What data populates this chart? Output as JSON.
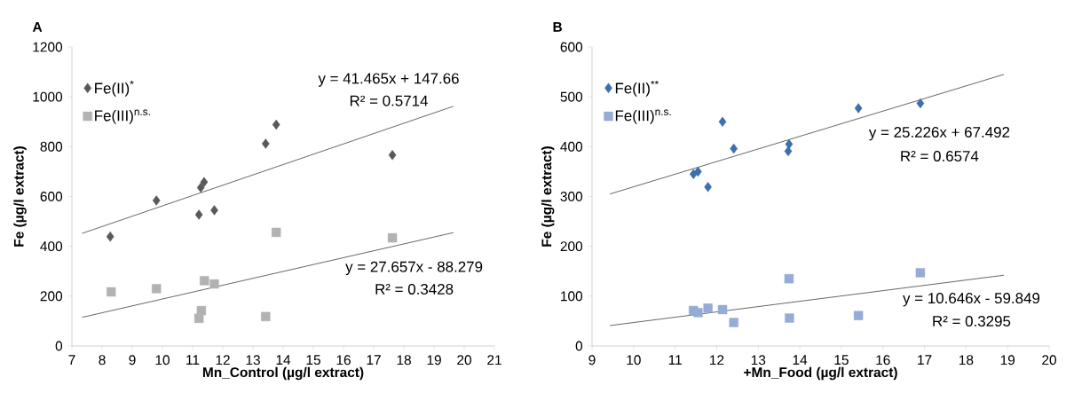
{
  "chart_data": [
    {
      "type": "scatter",
      "title": "A",
      "xlabel": "Mn_Control (µg/l extract)",
      "ylabel": "Fe (µg/l extract)",
      "xlim": [
        7,
        21
      ],
      "xticks": [
        7,
        8,
        9,
        10,
        11,
        12,
        13,
        14,
        15,
        16,
        17,
        18,
        19,
        20,
        21
      ],
      "ylim": [
        0,
        1200
      ],
      "yticks": [
        0,
        200,
        400,
        600,
        800,
        1000,
        1200
      ],
      "grid": false,
      "legend": "top left",
      "series": [
        {
          "name": "Fe(II)$^{*}$",
          "marker": "diamond",
          "color": "#595959",
          "x": [
            8.27,
            9.8,
            11.38,
            11.27,
            11.21,
            11.72,
            13.42,
            13.77,
            17.62
          ],
          "values": [
            439,
            584,
            658,
            636,
            527,
            545,
            812,
            888,
            766
          ]
        },
        {
          "name": "Fe(III)$^{n.s.}$",
          "marker": "square",
          "color": "#b2b2b2",
          "x": [
            8.3,
            9.8,
            11.39,
            11.72,
            11.29,
            11.21,
            13.42,
            13.77,
            17.62
          ],
          "values": [
            217,
            230,
            262,
            249,
            142,
            111,
            118,
            456,
            434
          ]
        },
        {
          "type": "line",
          "marker": "none",
          "color": "#404040",
          "x": [
            7.34,
            19.64
          ],
          "values": [
            452,
            962
          ]
        },
        {
          "type": "line",
          "marker": "none",
          "color": "#404040",
          "x": [
            7.34,
            19.64
          ],
          "values": [
            115,
            455
          ]
        }
      ],
      "annotations": [
        "y = 41.465x + 147.66",
        "R² = 0.5714",
        "y = 27.657x - 88.279",
        "R² = 0.3428"
      ]
    },
    {
      "type": "scatter",
      "title": "B",
      "xlabel": "+Mn_Food (µg/l extract)",
      "ylabel": "Fe (µg/l extract)",
      "xlim": [
        9,
        20
      ],
      "xticks": [
        9,
        10,
        11,
        12,
        13,
        14,
        15,
        16,
        17,
        18,
        19,
        20
      ],
      "ylim": [
        0,
        600
      ],
      "yticks": [
        0,
        100,
        200,
        300,
        400,
        500,
        600
      ],
      "grid": false,
      "legend": "top left",
      "series": [
        {
          "name": "Fe(II)$^{**}$",
          "marker": "diamond",
          "color": "#3d6fad",
          "x": [
            11.44,
            11.55,
            11.79,
            12.14,
            12.41,
            13.74,
            13.72,
            15.41,
            16.9
          ],
          "values": [
            345,
            350,
            319,
            450,
            396,
            405,
            391,
            477,
            487
          ]
        },
        {
          "name": "Fe(III)$^{n.s.}$",
          "marker": "square",
          "color": "#95acd6",
          "x": [
            11.44,
            11.55,
            11.79,
            12.14,
            12.41,
            13.74,
            13.75,
            15.41,
            16.9
          ],
          "values": [
            71,
            67,
            76,
            73,
            47,
            135,
            56,
            61,
            147
          ]
        },
        {
          "type": "line",
          "marker": "none",
          "color": "#404040",
          "x": [
            9.43,
            18.91
          ],
          "values": [
            305,
            545
          ]
        },
        {
          "type": "line",
          "marker": "none",
          "color": "#404040",
          "x": [
            9.43,
            18.91
          ],
          "values": [
            41,
            142
          ]
        }
      ],
      "annotations": [
        "y = 25.226x + 67.492",
        "R² = 0.6574",
        "y = 10.646x - 59.849",
        "R² = 0.3295"
      ]
    }
  ]
}
